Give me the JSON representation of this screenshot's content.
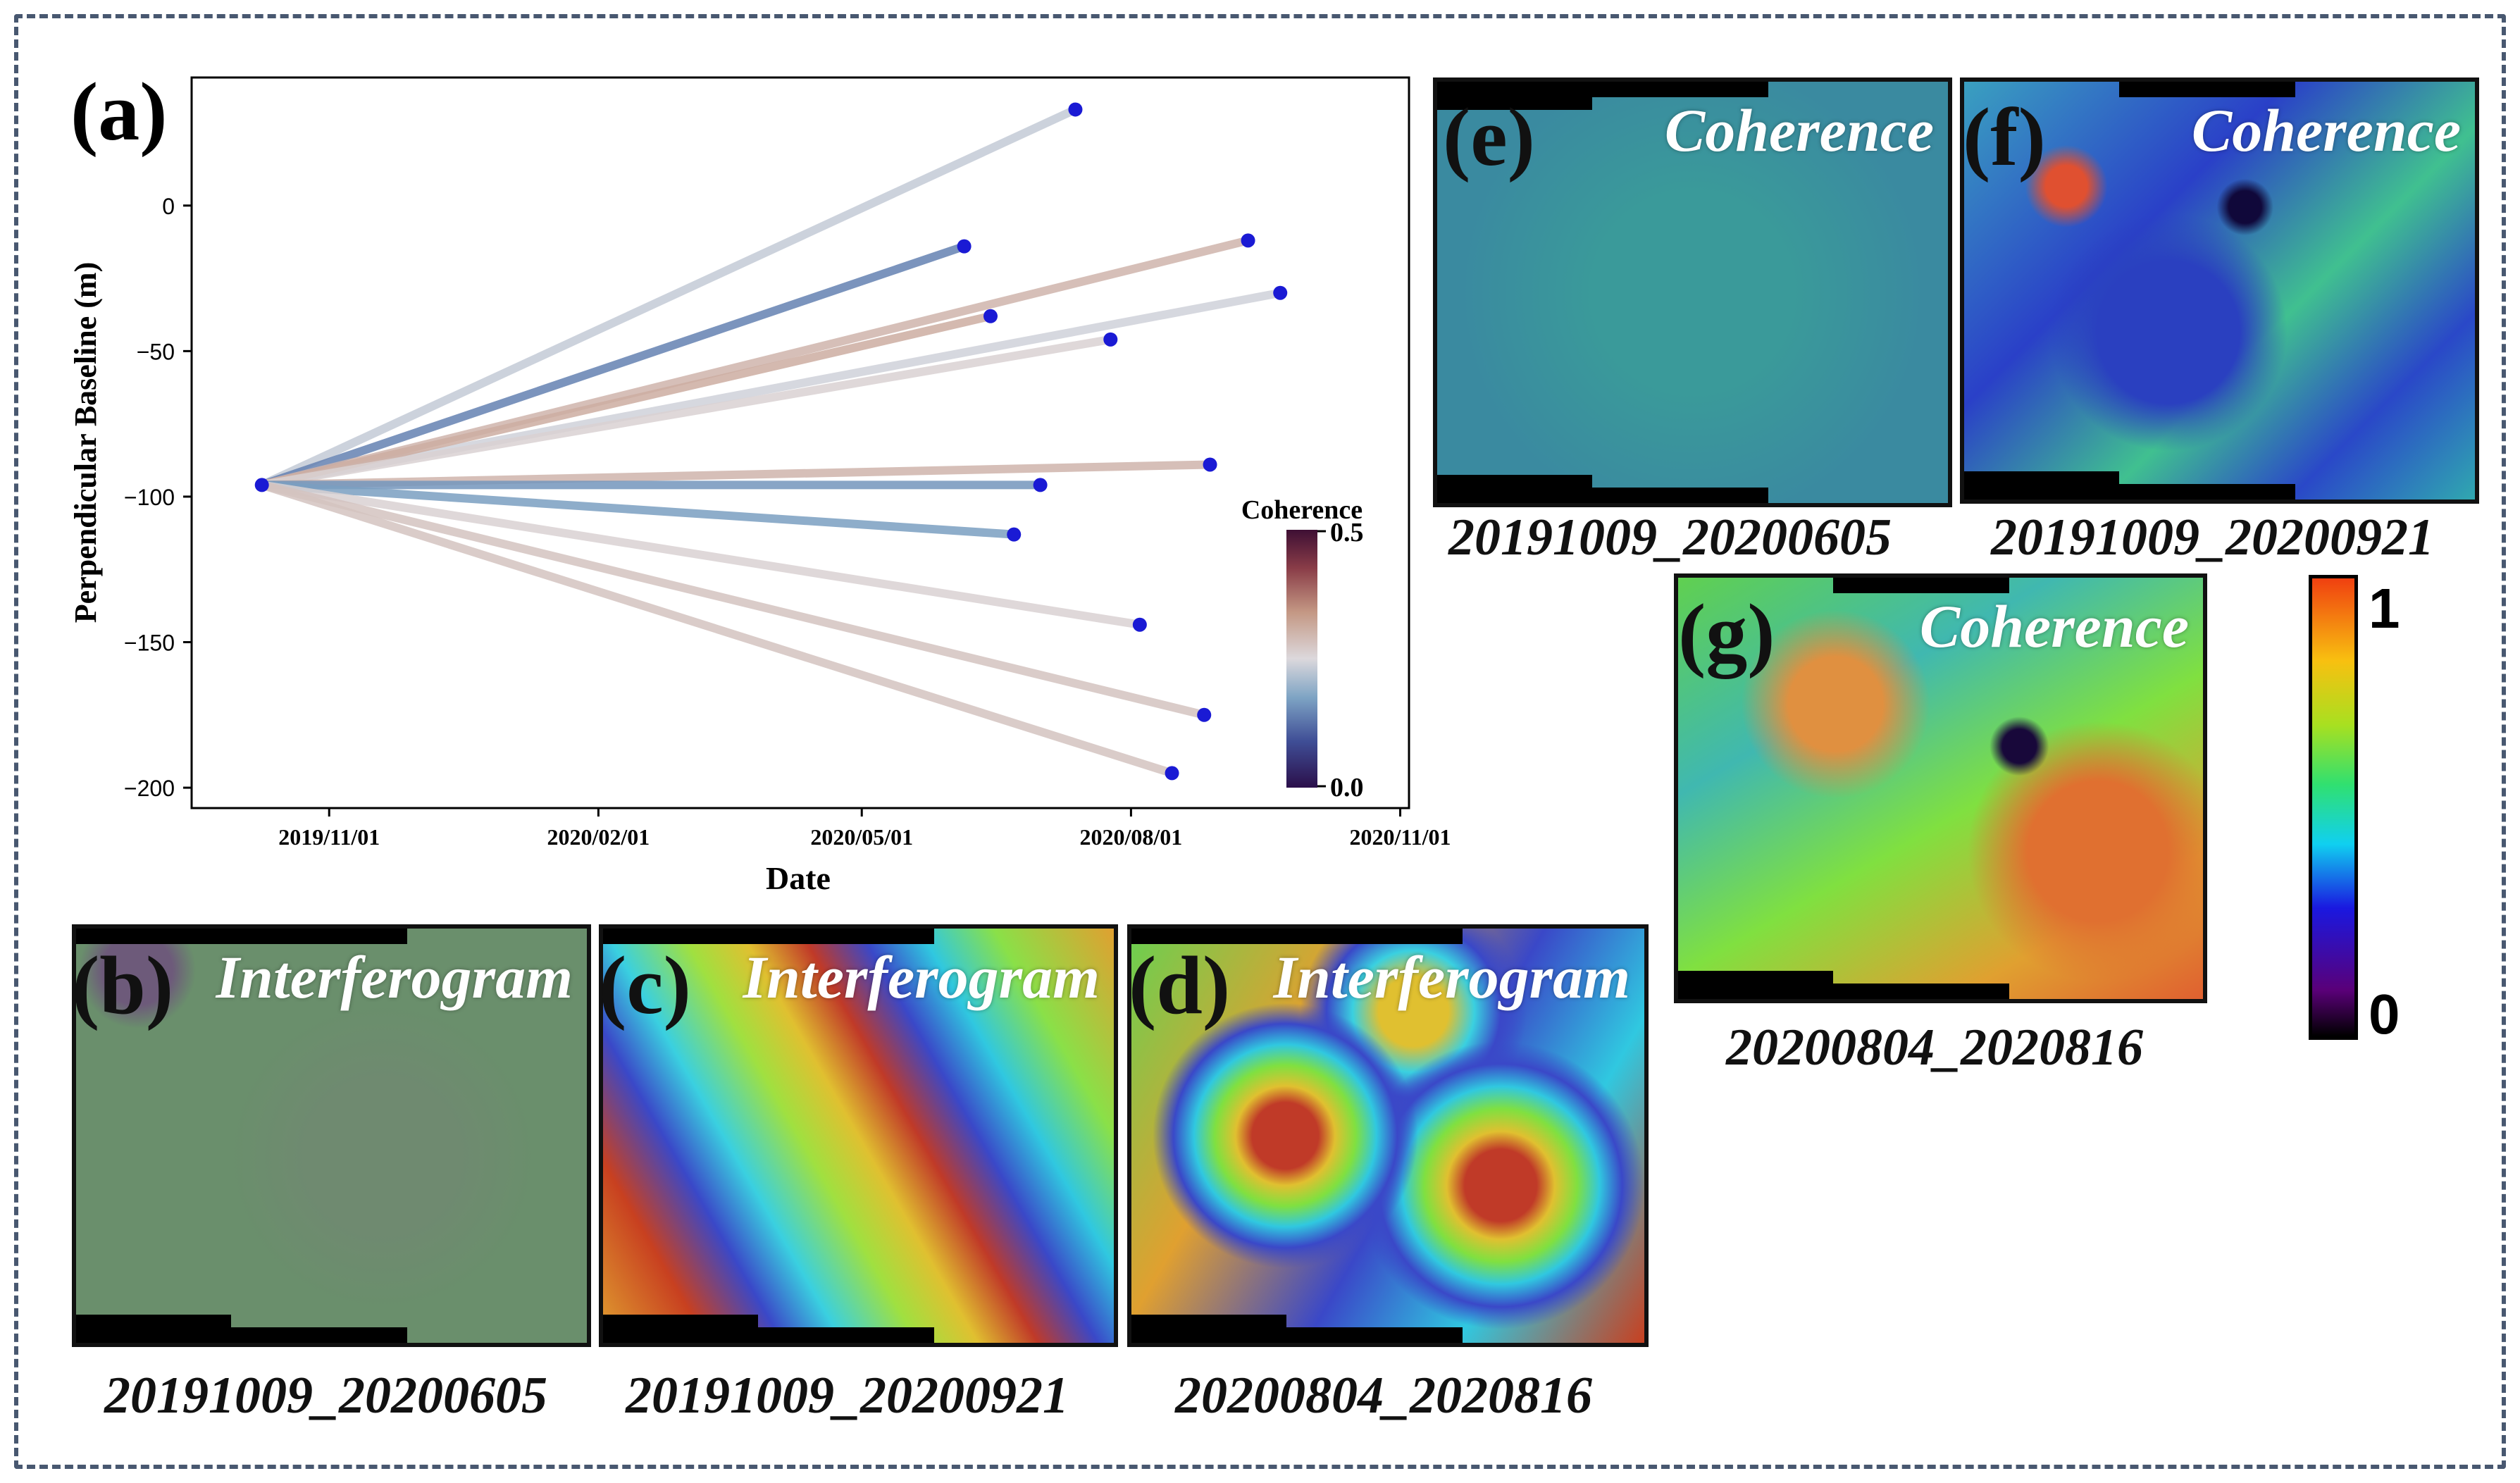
{
  "chart_data": {
    "type": "line",
    "panel_label": "(a)",
    "xlabel": "Date",
    "ylabel": "Perpendicular Baseline (m)",
    "x_ticks": [
      "2019/11/01",
      "2020/02/01",
      "2020/05/01",
      "2020/08/01",
      "2020/11/01"
    ],
    "y_ticks": [
      0,
      -50,
      -100,
      -150,
      -200
    ],
    "ylim": [
      -207,
      44
    ],
    "xlim": [
      "2019/09/15",
      "2020/11/04"
    ],
    "grid": false,
    "reference": {
      "date": "2019/10/09",
      "baseline": -96
    },
    "pairs": [
      {
        "date": "2020/07/13",
        "baseline": 33,
        "coherence": 0.23
      },
      {
        "date": "2020/06/05",
        "baseline": -14,
        "coherence": 0.14
      },
      {
        "date": "2020/09/10",
        "baseline": -12,
        "coherence": 0.3
      },
      {
        "date": "2020/09/21",
        "baseline": -30,
        "coherence": 0.24
      },
      {
        "date": "2020/06/14",
        "baseline": -38,
        "coherence": 0.31
      },
      {
        "date": "2020/07/25",
        "baseline": -46,
        "coherence": 0.26
      },
      {
        "date": "2020/08/28",
        "baseline": -89,
        "coherence": 0.3
      },
      {
        "date": "2020/07/01",
        "baseline": -96,
        "coherence": 0.16
      },
      {
        "date": "2020/06/22",
        "baseline": -113,
        "coherence": 0.17
      },
      {
        "date": "2020/08/04",
        "baseline": -144,
        "coherence": 0.26
      },
      {
        "date": "2020/08/26",
        "baseline": -175,
        "coherence": 0.28
      },
      {
        "date": "2020/08/15",
        "baseline": -195,
        "coherence": 0.28
      }
    ],
    "colorbar": {
      "label": "Coherence",
      "min_label": "0.0",
      "max_label": "0.5",
      "range": [
        0,
        0.5
      ]
    },
    "colors": {
      "dot": "#1a1ad4",
      "low": "#2b0f4a",
      "mid": "#dcd8dc",
      "high": "#4a1430"
    }
  },
  "panels": {
    "b": {
      "letter": "(b)",
      "title": "Interferogram",
      "caption": "20191009_20200605"
    },
    "c": {
      "letter": "(c)",
      "title": "Interferogram",
      "caption": "20191009_20200921"
    },
    "d": {
      "letter": "(d)",
      "title": "Interferogram",
      "caption": "20200804_2020816"
    },
    "e": {
      "letter": "(e)",
      "title": "Coherence",
      "caption": "20191009_20200605"
    },
    "f": {
      "letter": "(f)",
      "title": "Coherence",
      "caption": "20191009_20200921"
    },
    "g": {
      "letter": "(g)",
      "title": "Coherence",
      "caption": "20200804_2020816"
    }
  },
  "coherence_colorbar": {
    "max_label": "1",
    "min_label": "0"
  }
}
